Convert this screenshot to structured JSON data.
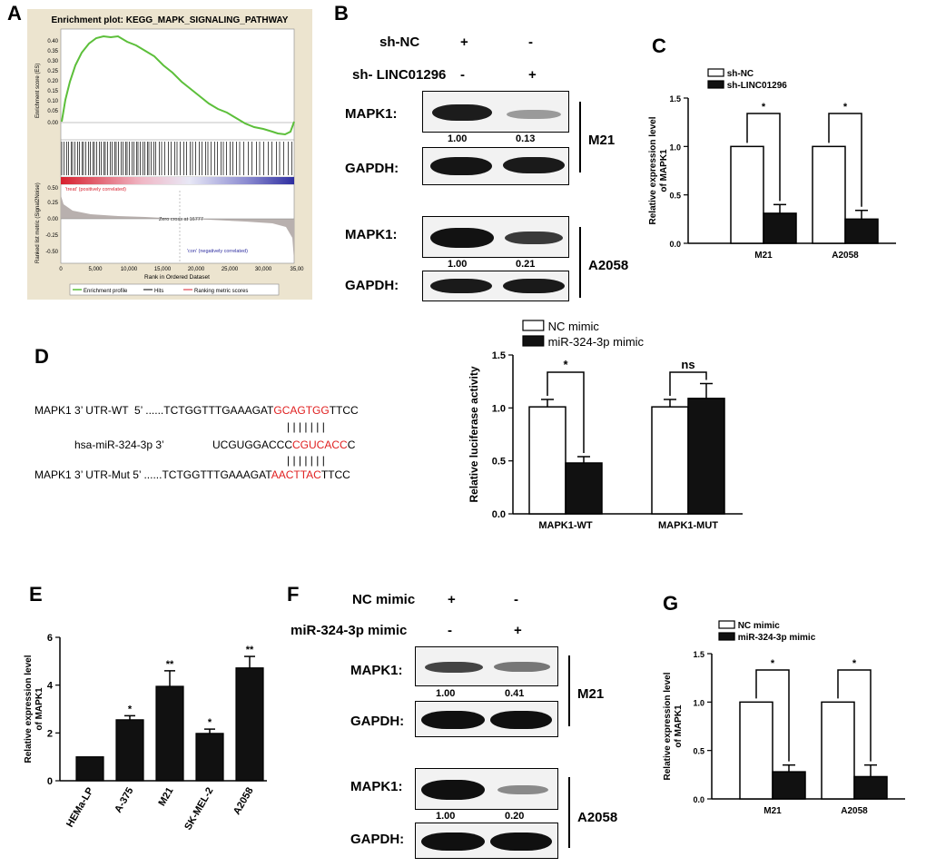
{
  "panels": {
    "A": "A",
    "B": "B",
    "C": "C",
    "D": "D",
    "E": "E",
    "F": "F",
    "G": "G"
  },
  "gsea": {
    "title": "Enrichment plot: KEGG_MAPK_SIGNALING_PATHWAY",
    "es_ylabel": "Enrichment score (ES)",
    "es_ticks": [
      "0.40",
      "0.35",
      "0.30",
      "0.25",
      "0.20",
      "0.15",
      "0.10",
      "0.05",
      "0.00"
    ],
    "rank_ylabel": "Ranked list metric (Signal2Noise)",
    "rank_ticks": [
      "0.50",
      "0.25",
      "0.00",
      "-0.25",
      "-0.50"
    ],
    "treat_label": "'treat' (positively correlated)",
    "zero_cross": "Zero cross at 16777",
    "con_label": "'con' (negatively correlated)",
    "x_ticks": [
      "0",
      "5,000",
      "10,000",
      "15,000",
      "20,000",
      "25,000",
      "30,000",
      "35,00"
    ],
    "xlabel": "Rank in Ordered Dataset",
    "legend": [
      "Enrichment profile",
      "Hits",
      "Ranking metric scores"
    ]
  },
  "blotB": {
    "row1_label": "sh-NC",
    "row1_signs": [
      "+",
      "-"
    ],
    "row2_label": "sh- LINC01296",
    "row2_signs": [
      "-",
      "+"
    ],
    "mapk1": "MAPK1:",
    "gapdh": "GAPDH:",
    "m21": "M21",
    "a2058": "A2058",
    "m21_vals": [
      "1.00",
      "0.13"
    ],
    "a2058_vals": [
      "1.00",
      "0.21"
    ]
  },
  "seq": {
    "wt_label": "MAPK1 3’ UTR-WT  5’ ......TCTGGTTTGAAAGAT",
    "wt_red": "GCAGTGG",
    "wt_end": "TTCC",
    "bars": "| | | | | | |",
    "mir_label": "hsa-miR-324-3p 3’",
    "mir_start": "UCGUGGACCC",
    "mir_red": "CGUCACC",
    "mir_end": "C",
    "mut_label": "MAPK1 3’ UTR-Mut 5’ ......TCTGGTTTGAAAGAT",
    "mut_red": "AACTTAC",
    "mut_end": "TTCC"
  },
  "blotF": {
    "row1_label": "NC mimic",
    "row1_signs": [
      "+",
      "-"
    ],
    "row2_label": "miR-324-3p mimic",
    "row2_signs": [
      "-",
      "+"
    ],
    "mapk1": "MAPK1:",
    "gapdh": "GAPDH:",
    "m21": "M21",
    "a2058": "A2058",
    "m21_vals": [
      "1.00",
      "0.41"
    ],
    "a2058_vals": [
      "1.00",
      "0.20"
    ]
  },
  "chart_data": [
    {
      "id": "C",
      "type": "bar",
      "categories": [
        "M21",
        "A2058"
      ],
      "series": [
        {
          "name": "sh-NC",
          "values": [
            1.0,
            1.0
          ],
          "errors": [
            0,
            0
          ]
        },
        {
          "name": "sh-LINC01296",
          "values": [
            0.31,
            0.25
          ],
          "errors": [
            0.09,
            0.09
          ]
        }
      ],
      "ylabel": "Relative expression level of MAPK1",
      "ylim": [
        0,
        1.5
      ],
      "yticks": [
        "0.0",
        "0.5",
        "1.0",
        "1.5"
      ],
      "sig": [
        "*",
        "*"
      ]
    },
    {
      "id": "D",
      "type": "bar",
      "categories": [
        "MAPK1-WT",
        "MAPK1-MUT"
      ],
      "series": [
        {
          "name": "NC mimic",
          "values": [
            1.01,
            1.01
          ],
          "errors": [
            0.07,
            0.07
          ]
        },
        {
          "name": "miR-324-3p mimic",
          "values": [
            0.48,
            1.09
          ],
          "errors": [
            0.06,
            0.14
          ]
        }
      ],
      "ylabel": "Relative luciferase activity",
      "ylim": [
        0,
        1.5
      ],
      "yticks": [
        "0.0",
        "0.5",
        "1.0",
        "1.5"
      ],
      "sig": [
        "*",
        "ns"
      ]
    },
    {
      "id": "E",
      "type": "bar",
      "categories": [
        "HEMa-LP",
        "A-375",
        "M21",
        "SK-MEL-2",
        "A2058"
      ],
      "values": [
        1.0,
        2.55,
        3.95,
        1.98,
        4.72
      ],
      "errors": [
        0,
        0.17,
        0.65,
        0.18,
        0.48
      ],
      "sig": [
        "",
        "*",
        "**",
        "*",
        "**"
      ],
      "ylabel": "Relative expression level of MAPK1",
      "ylim": [
        0,
        6
      ],
      "yticks": [
        "0",
        "2",
        "4",
        "6"
      ]
    },
    {
      "id": "G",
      "type": "bar",
      "categories": [
        "M21",
        "A2058"
      ],
      "series": [
        {
          "name": "NC mimic",
          "values": [
            1.0,
            1.0
          ],
          "errors": [
            0,
            0
          ]
        },
        {
          "name": "miR-324-3p mimic",
          "values": [
            0.28,
            0.23
          ],
          "errors": [
            0.07,
            0.12
          ]
        }
      ],
      "ylabel": "Relative expression level of MAPK1",
      "ylim": [
        0,
        1.5
      ],
      "yticks": [
        "0.0",
        "0.5",
        "1.0",
        "1.5"
      ],
      "sig": [
        "*",
        "*"
      ]
    }
  ]
}
